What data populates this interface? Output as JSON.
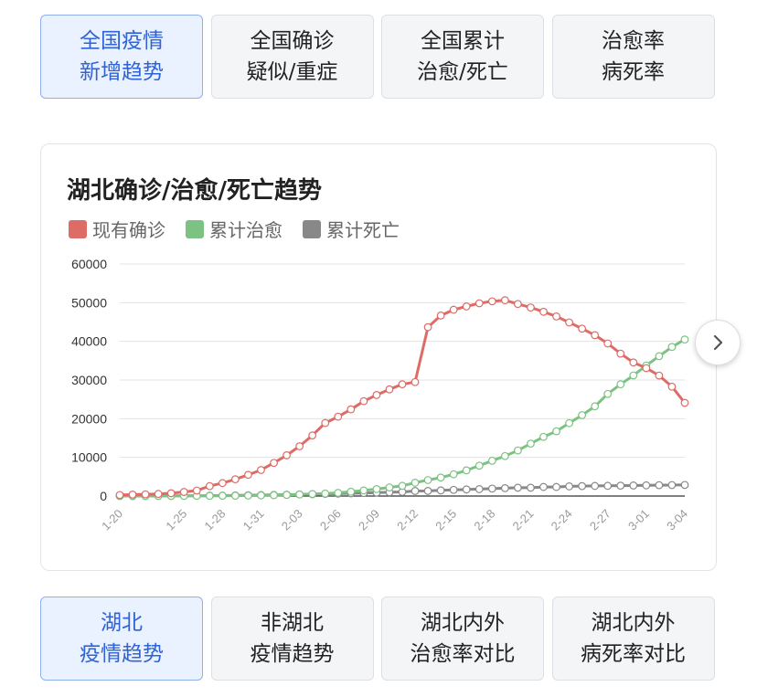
{
  "top_tabs": [
    {
      "line1": "全国疫情",
      "line2": "新增趋势",
      "active": true
    },
    {
      "line1": "全国确诊",
      "line2": "疑似/重症",
      "active": false
    },
    {
      "line1": "全国累计",
      "line2": "治愈/死亡",
      "active": false
    },
    {
      "line1": "治愈率",
      "line2": "病死率",
      "active": false
    }
  ],
  "bottom_tabs": [
    {
      "line1": "湖北",
      "line2": "疫情趋势",
      "active": true
    },
    {
      "line1": "非湖北",
      "line2": "疫情趋势",
      "active": false
    },
    {
      "line1": "湖北内外",
      "line2": "治愈率对比",
      "active": false
    },
    {
      "line1": "湖北内外",
      "line2": "病死率对比",
      "active": false
    }
  ],
  "next_button": {
    "icon": "chevron-right-icon"
  },
  "chart_data": {
    "type": "line",
    "title": "湖北确诊/治愈/死亡趋势",
    "xlabel": "",
    "ylabel": "",
    "ylim": [
      0,
      60000
    ],
    "yticks": [
      0,
      10000,
      20000,
      30000,
      40000,
      50000,
      60000
    ],
    "tick_labels": [
      "1-20",
      "1-25",
      "1-28",
      "1-31",
      "2-03",
      "2-06",
      "2-09",
      "2-12",
      "2-15",
      "2-18",
      "2-21",
      "2-24",
      "2-27",
      "3-01",
      "3-04"
    ],
    "legend_position": "top-left",
    "grid": true,
    "x": [
      "1-20",
      "1-21",
      "1-22",
      "1-23",
      "1-24",
      "1-25",
      "1-26",
      "1-27",
      "1-28",
      "1-29",
      "1-30",
      "1-31",
      "2-01",
      "2-02",
      "2-03",
      "2-04",
      "2-05",
      "2-06",
      "2-07",
      "2-08",
      "2-09",
      "2-10",
      "2-11",
      "2-12",
      "2-13",
      "2-14",
      "2-15",
      "2-16",
      "2-17",
      "2-18",
      "2-19",
      "2-20",
      "2-21",
      "2-22",
      "2-23",
      "2-24",
      "2-25",
      "2-26",
      "2-27",
      "2-28",
      "2-29",
      "3-01",
      "3-02",
      "3-03",
      "3-04"
    ],
    "series": [
      {
        "name": "现有确诊",
        "color": "#dd6b66",
        "values": [
          270,
          375,
          444,
          549,
          729,
          1052,
          1423,
          2567,
          3349,
          4334,
          5486,
          6728,
          8565,
          10532,
          12870,
          15675,
          18881,
          20521,
          22404,
          24523,
          26121,
          27589,
          28901,
          29480,
          43662,
          46672,
          48175,
          49030,
          49847,
          50353,
          50633,
          49665,
          48750,
          47647,
          46439,
          44879,
          43292,
          41593,
          39447,
          36829,
          34542,
          33074,
          31159,
          28279,
          24083
        ]
      },
      {
        "name": "累计治愈",
        "color": "#7cc283",
        "values": [
          25,
          28,
          28,
          31,
          32,
          42,
          44,
          47,
          80,
          90,
          119,
          166,
          215,
          295,
          396,
          520,
          633,
          817,
          1115,
          1439,
          1795,
          2222,
          2639,
          3441,
          4131,
          4774,
          5623,
          6639,
          7862,
          9128,
          10337,
          11788,
          13557,
          15299,
          16748,
          18854,
          20912,
          23200,
          26403,
          28895,
          31187,
          33757,
          36167,
          38556,
          40479
        ]
      },
      {
        "name": "累计死亡",
        "color": "#888888",
        "values": [
          6,
          9,
          17,
          24,
          39,
          52,
          76,
          100,
          125,
          162,
          204,
          249,
          294,
          350,
          414,
          479,
          549,
          618,
          699,
          780,
          871,
          974,
          1068,
          1310,
          1318,
          1457,
          1596,
          1696,
          1789,
          1921,
          2029,
          2144,
          2144,
          2346,
          2346,
          2495,
          2563,
          2615,
          2641,
          2682,
          2727,
          2761,
          2803,
          2835,
          2871
        ]
      }
    ]
  }
}
